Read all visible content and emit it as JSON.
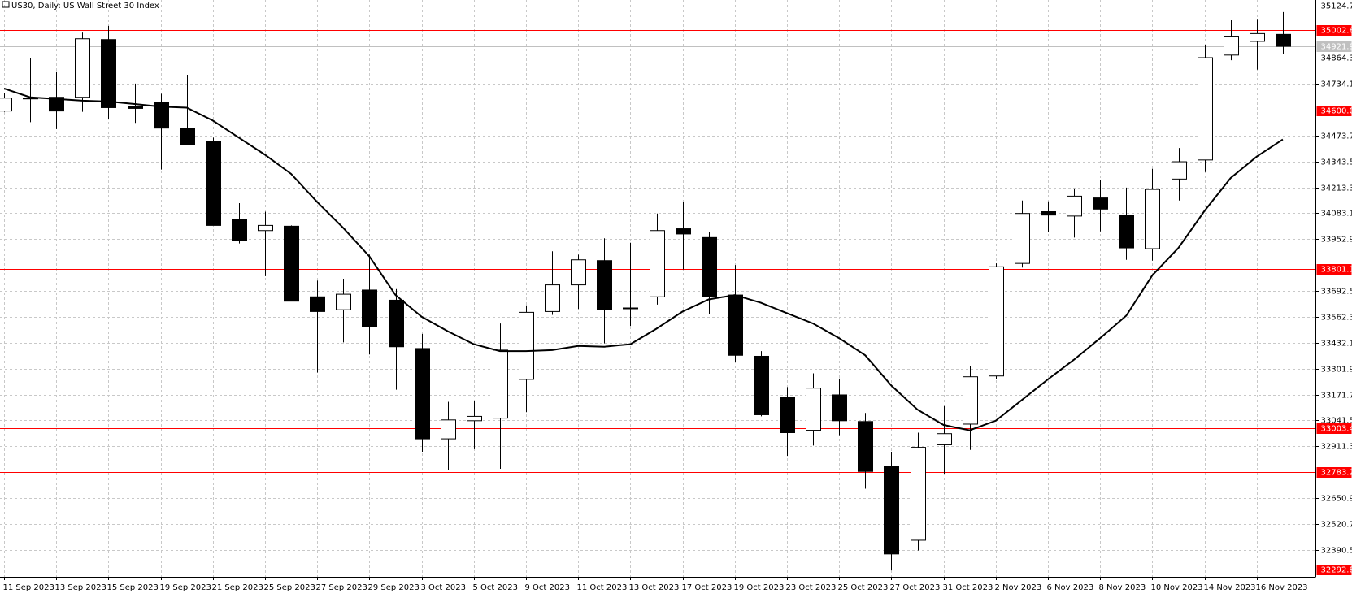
{
  "chart_data": {
    "type": "candlestick",
    "title": "US30, Daily:  US Wall Street 30 Index",
    "categories": [
      "11 Sep 2023",
      null,
      "13 Sep 2023",
      null,
      "15 Sep 2023",
      null,
      "19 Sep 2023",
      null,
      "21 Sep 2023",
      null,
      "25 Sep 2023",
      null,
      "27 Sep 2023",
      null,
      "29 Sep 2023",
      null,
      "3 Oct 2023",
      null,
      "5 Oct 2023",
      null,
      "9 Oct 2023",
      null,
      "11 Oct 2023",
      null,
      "13 Oct 2023",
      null,
      "17 Oct 2023",
      null,
      "19 Oct 2023",
      null,
      "23 Oct 2023",
      null,
      "25 Oct 2023",
      null,
      "27 Oct 2023",
      null,
      "31 Oct 2023",
      null,
      "2 Nov 2023",
      null,
      "6 Nov 2023",
      null,
      "8 Nov 2023",
      null,
      "10 Nov 2023",
      null,
      "14 Nov 2023",
      null,
      "16 Nov 2023",
      null
    ],
    "open": [
      34597,
      34662,
      34666,
      34666,
      34956,
      34620,
      34640,
      34511,
      34446,
      34052,
      33996,
      34018,
      33663,
      33598,
      33697,
      33646,
      33403,
      32949,
      33040,
      33053,
      33248,
      33589,
      33723,
      33845,
      33607,
      33663,
      34005,
      33961,
      33672,
      33364,
      33157,
      32992,
      33170,
      33036,
      32811,
      32439,
      32919,
      33023,
      33265,
      33831,
      34091,
      34069,
      34160,
      34074,
      33905,
      34255,
      34351,
      34878,
      34947,
      34982
    ],
    "high": [
      34688,
      34865,
      34796,
      34991,
      35025,
      34735,
      34684,
      34779,
      34463,
      34134,
      34091,
      34022,
      33745,
      33754,
      33875,
      33702,
      33477,
      33135,
      33140,
      33529,
      33620,
      33892,
      33875,
      33957,
      33935,
      34082,
      34139,
      33987,
      33823,
      33390,
      33209,
      33278,
      33252,
      33079,
      32884,
      32980,
      33114,
      33317,
      33831,
      34147,
      34143,
      34208,
      34251,
      34212,
      34307,
      34411,
      34930,
      35056,
      35060,
      35094
    ],
    "low": [
      34593,
      34541,
      34506,
      34593,
      34554,
      34537,
      34303,
      34428,
      34022,
      33931,
      33767,
      33641,
      33282,
      33434,
      33373,
      33196,
      32884,
      32793,
      32897,
      32798,
      33083,
      33572,
      33602,
      33429,
      33516,
      33624,
      33801,
      33576,
      33334,
      33062,
      32863,
      32915,
      32967,
      32698,
      32287,
      32387,
      32772,
      32893,
      33248,
      33810,
      33987,
      33961,
      33992,
      33849,
      33845,
      34147,
      34290,
      34852,
      34805,
      34883
    ],
    "close": [
      34662,
      34660,
      34597,
      34960,
      34614,
      34610,
      34511,
      34428,
      34022,
      33944,
      34022,
      33641,
      33589,
      33676,
      33512,
      33412,
      32949,
      33044,
      33062,
      33395,
      33585,
      33723,
      33849,
      33598,
      33603,
      33996,
      33979,
      33663,
      33369,
      33070,
      32980,
      33204,
      33040,
      32785,
      32370,
      32906,
      32975,
      33261,
      33814,
      34082,
      34074,
      34169,
      34104,
      33909,
      34203,
      34342,
      34865,
      34973,
      34986,
      34921.9
    ],
    "up_color": "#ffffff",
    "down_color": "#000000",
    "outline_color": "#000000",
    "moving_average": {
      "color": "#000000",
      "values": [
        34710,
        34666,
        34658,
        34649,
        34645,
        34632,
        34619,
        34614,
        34549,
        34463,
        34377,
        34281,
        34139,
        34009,
        33866,
        33672,
        33563,
        33490,
        33425,
        33390,
        33390,
        33395,
        33416,
        33412,
        33425,
        33503,
        33589,
        33650,
        33672,
        33633,
        33581,
        33529,
        33455,
        33369,
        33217,
        33096,
        33019,
        32992,
        33040,
        33144,
        33248,
        33347,
        33455,
        33568,
        33771,
        33909,
        34095,
        34260,
        34368,
        34454
      ]
    },
    "levels": [
      {
        "value": 35002.6,
        "color": "#ff0000"
      },
      {
        "value": 34921.9,
        "color": "#c0c0c0"
      },
      {
        "value": {
          "value": 34600,
          "label": "34600.0"
        },
        "color": "#ff0000"
      },
      {
        "value": 33801.1,
        "color": "#ff0000"
      },
      {
        "value": 33003.4,
        "color": "#ff0000"
      },
      {
        "value": 32783.2,
        "color": "#ff0000"
      },
      {
        "value": 32292.8,
        "color": "#ff0000"
      }
    ],
    "ylim": [
      32255,
      35155
    ],
    "yticks": [
      35124.7,
      34864.3,
      34734.1,
      34473.7,
      34343.5,
      34213.3,
      34083.1,
      33952.9,
      33692.5,
      33562.3,
      33432.1,
      33301.9,
      33171.7,
      33041.5,
      32911.3,
      32650.9,
      32520.7,
      32390.5
    ],
    "grid": true
  }
}
